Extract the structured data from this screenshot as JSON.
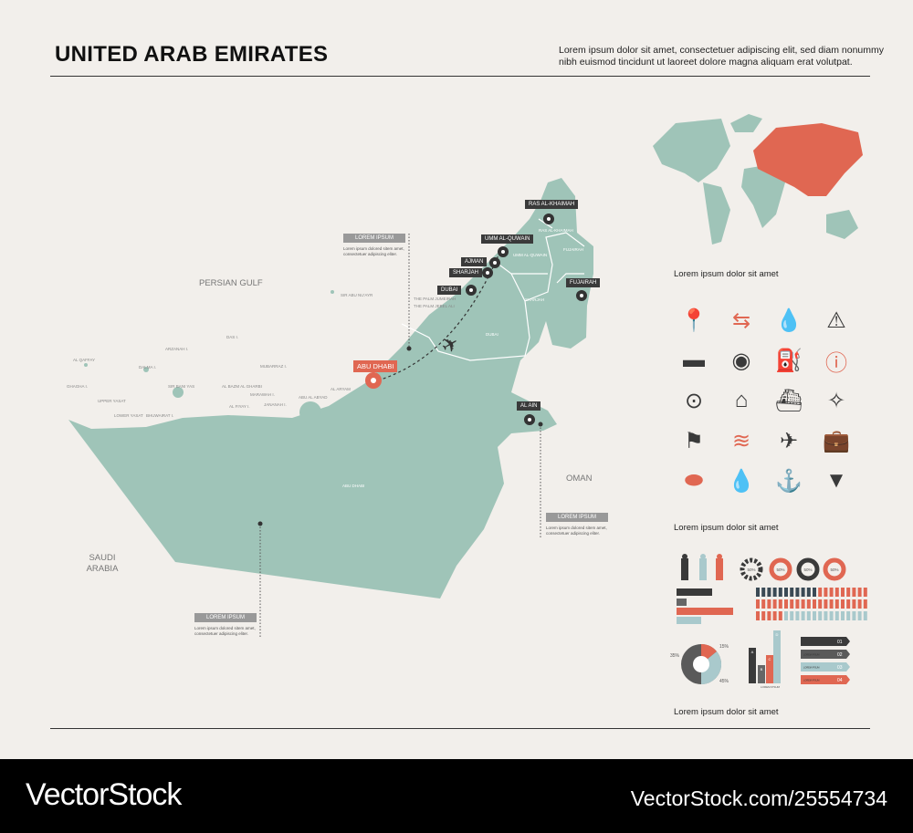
{
  "header": {
    "title": "UNITED ARAB EMIRATES",
    "description": "Lorem ipsum dolor sit amet, consectetuer adipiscing elit, sed diam nonummy nibh euismod tincidunt ut laoreet dolore magna aliquam erat volutpat."
  },
  "colors": {
    "land": "#9fc4b8",
    "accent": "#e06752",
    "dark": "#3a3a3a",
    "background": "#f2efeb"
  },
  "map": {
    "neighbors": [
      "PERSIAN GULF",
      "SAUDI ARABIA",
      "OMAN"
    ],
    "regions": [
      "ABU DHABI",
      "DUBAI",
      "SHARJAH",
      "RAS AL-KHAIMAH",
      "FUJAIRAH",
      "UMM AL-QUWAIN"
    ],
    "cities": [
      "RAS AL-KHAIMAH",
      "UMM AL-QUWAIN",
      "AJMAN",
      "SHARJAH",
      "DUBAI",
      "FUJAIRAH",
      "ABU DHABI",
      "AL AIN"
    ],
    "capital": "ABU DHABI",
    "places": [
      "THE PALM JUMEIRAH",
      "THE PALM JEBEL ALI",
      "SIR ABU NU'AYR",
      "DAS I.",
      "ARZANAH I.",
      "AL QAFFAY",
      "GHAGHA I.",
      "DALMA I.",
      "UPPER YASAT",
      "LOWER YASAT",
      "SIR BANI YAS",
      "BHUWAIRAT I.",
      "AL BAZM AL GHARBI",
      "MUBARRAZ I.",
      "MARAWAH I.",
      "AL FIYAY I.",
      "JANANAH I.",
      "ABU AL ABYAD",
      "AL ARYAM"
    ],
    "callouts": [
      {
        "title": "LOREM IPSUM",
        "text": "Lorem ipsum dolored sitem amet, consectetuer adipiscing eliter."
      },
      {
        "title": "LOREM IPSUM",
        "text": "Lorem ipsum dolored sitem amet, consectetuer adipiscing eliter."
      },
      {
        "title": "LOREM IPSUM",
        "text": "Lorem ipsum dolored sitem amet, consectetuer adipiscing eliter."
      }
    ]
  },
  "sidebar": {
    "captions": [
      "Lorem ipsum dolor sit amet",
      "Lorem ipsum dolor sit amet",
      "Lorem ipsum dolor sit amet"
    ],
    "icons": [
      "map-pin",
      "signpost",
      "drops",
      "warning",
      "flag-banner",
      "target",
      "fuel-pump",
      "info",
      "circle-dot",
      "house",
      "ship",
      "compass",
      "flag",
      "waves",
      "airplane",
      "suitcase",
      "push-pin",
      "drop",
      "anchor",
      "arrow-down"
    ],
    "donut_labels": [
      "50%",
      "50%",
      "50%",
      "50%"
    ],
    "pie_labels": [
      "15%",
      "35%",
      "45%"
    ],
    "bar_labels": [
      "A",
      "B",
      "C",
      "D"
    ],
    "list_items": [
      "01",
      "02",
      "03",
      "04"
    ],
    "list_text": "LOREM IPSUM",
    "bar_caption": "LOREM IPSUM"
  },
  "footer": {
    "brand": "VectorStock",
    "id": "VectorStock.com/25554734"
  }
}
